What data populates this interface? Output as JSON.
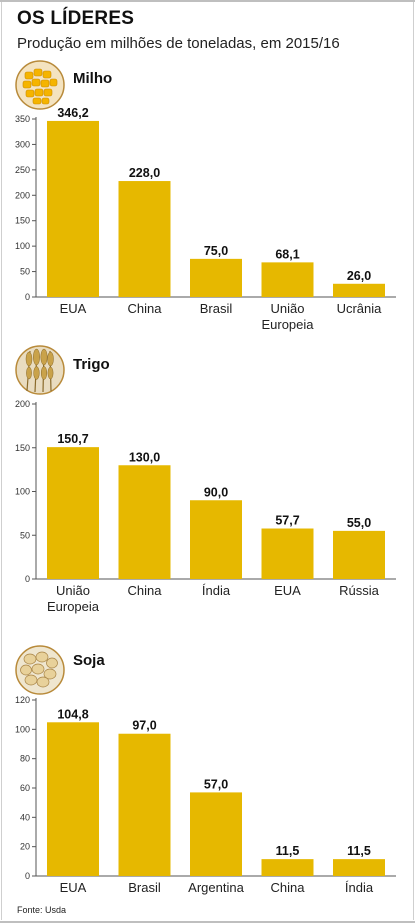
{
  "title": "OS LÍDERES",
  "subtitle": "Produção em milhões de toneladas, em 2015/16",
  "source": "Fonte: Usda",
  "colors": {
    "bar": "#e6b800",
    "axis": "#555555",
    "text": "#111111"
  },
  "chart_data": [
    {
      "type": "bar",
      "title": "Milho",
      "icon": "corn-icon",
      "categories": [
        [
          "EUA"
        ],
        [
          "China"
        ],
        [
          "Brasil"
        ],
        [
          "União",
          "Europeia"
        ],
        [
          "Ucrânia"
        ]
      ],
      "values": [
        346.2,
        228.0,
        75.0,
        68.1,
        26.0
      ],
      "value_labels": [
        "346,2",
        "228,0",
        "75,0",
        "68,1",
        "26,0"
      ],
      "ylim": [
        0,
        350
      ],
      "yticks": [
        0,
        50,
        100,
        150,
        200,
        250,
        300,
        350
      ]
    },
    {
      "type": "bar",
      "title": "Trigo",
      "icon": "wheat-icon",
      "categories": [
        [
          "União",
          "Europeia"
        ],
        [
          "China"
        ],
        [
          "Índia"
        ],
        [
          "EUA"
        ],
        [
          "Rússia"
        ]
      ],
      "values": [
        150.7,
        130.0,
        90.0,
        57.7,
        55.0
      ],
      "value_labels": [
        "150,7",
        "130,0",
        "90,0",
        "57,7",
        "55,0"
      ],
      "ylim": [
        0,
        200
      ],
      "yticks": [
        0,
        50,
        100,
        150,
        200
      ]
    },
    {
      "type": "bar",
      "title": "Soja",
      "icon": "soybean-icon",
      "categories": [
        [
          "EUA"
        ],
        [
          "Brasil"
        ],
        [
          "Argentina"
        ],
        [
          "China"
        ],
        [
          "Índia"
        ]
      ],
      "values": [
        104.8,
        97.0,
        57.0,
        11.5,
        11.5
      ],
      "value_labels": [
        "104,8",
        "97,0",
        "57,0",
        "11,5",
        "11,5"
      ],
      "ylim": [
        0,
        120
      ],
      "yticks": [
        0,
        20,
        40,
        60,
        80,
        100,
        120
      ]
    }
  ]
}
